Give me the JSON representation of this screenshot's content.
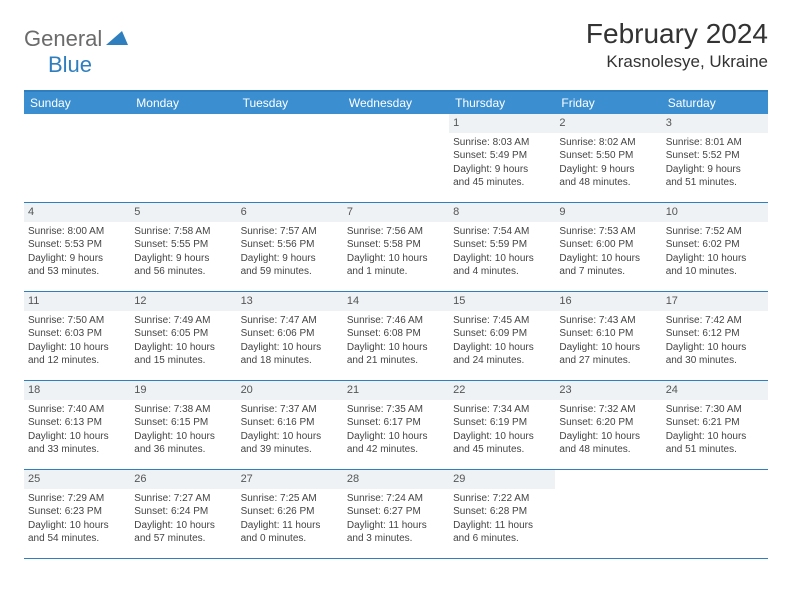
{
  "logo": {
    "part1": "General",
    "part2": "Blue"
  },
  "title": "February 2024",
  "subtitle": "Krasnolesye, Ukraine",
  "colors": {
    "header_bg": "#3b8fd1",
    "header_text": "#ffffff",
    "border": "#2f7fbf",
    "daynum_bg": "#eef2f5",
    "text": "#444444",
    "logo_gray": "#6b6b6b",
    "logo_blue": "#2f7fbf"
  },
  "day_headers": [
    "Sunday",
    "Monday",
    "Tuesday",
    "Wednesday",
    "Thursday",
    "Friday",
    "Saturday"
  ],
  "weeks": [
    [
      {
        "blank": true
      },
      {
        "blank": true
      },
      {
        "blank": true
      },
      {
        "blank": true
      },
      {
        "day": "1",
        "sunrise": "Sunrise: 8:03 AM",
        "sunset": "Sunset: 5:49 PM",
        "daylight1": "Daylight: 9 hours",
        "daylight2": "and 45 minutes."
      },
      {
        "day": "2",
        "sunrise": "Sunrise: 8:02 AM",
        "sunset": "Sunset: 5:50 PM",
        "daylight1": "Daylight: 9 hours",
        "daylight2": "and 48 minutes."
      },
      {
        "day": "3",
        "sunrise": "Sunrise: 8:01 AM",
        "sunset": "Sunset: 5:52 PM",
        "daylight1": "Daylight: 9 hours",
        "daylight2": "and 51 minutes."
      }
    ],
    [
      {
        "day": "4",
        "sunrise": "Sunrise: 8:00 AM",
        "sunset": "Sunset: 5:53 PM",
        "daylight1": "Daylight: 9 hours",
        "daylight2": "and 53 minutes."
      },
      {
        "day": "5",
        "sunrise": "Sunrise: 7:58 AM",
        "sunset": "Sunset: 5:55 PM",
        "daylight1": "Daylight: 9 hours",
        "daylight2": "and 56 minutes."
      },
      {
        "day": "6",
        "sunrise": "Sunrise: 7:57 AM",
        "sunset": "Sunset: 5:56 PM",
        "daylight1": "Daylight: 9 hours",
        "daylight2": "and 59 minutes."
      },
      {
        "day": "7",
        "sunrise": "Sunrise: 7:56 AM",
        "sunset": "Sunset: 5:58 PM",
        "daylight1": "Daylight: 10 hours",
        "daylight2": "and 1 minute."
      },
      {
        "day": "8",
        "sunrise": "Sunrise: 7:54 AM",
        "sunset": "Sunset: 5:59 PM",
        "daylight1": "Daylight: 10 hours",
        "daylight2": "and 4 minutes."
      },
      {
        "day": "9",
        "sunrise": "Sunrise: 7:53 AM",
        "sunset": "Sunset: 6:00 PM",
        "daylight1": "Daylight: 10 hours",
        "daylight2": "and 7 minutes."
      },
      {
        "day": "10",
        "sunrise": "Sunrise: 7:52 AM",
        "sunset": "Sunset: 6:02 PM",
        "daylight1": "Daylight: 10 hours",
        "daylight2": "and 10 minutes."
      }
    ],
    [
      {
        "day": "11",
        "sunrise": "Sunrise: 7:50 AM",
        "sunset": "Sunset: 6:03 PM",
        "daylight1": "Daylight: 10 hours",
        "daylight2": "and 12 minutes."
      },
      {
        "day": "12",
        "sunrise": "Sunrise: 7:49 AM",
        "sunset": "Sunset: 6:05 PM",
        "daylight1": "Daylight: 10 hours",
        "daylight2": "and 15 minutes."
      },
      {
        "day": "13",
        "sunrise": "Sunrise: 7:47 AM",
        "sunset": "Sunset: 6:06 PM",
        "daylight1": "Daylight: 10 hours",
        "daylight2": "and 18 minutes."
      },
      {
        "day": "14",
        "sunrise": "Sunrise: 7:46 AM",
        "sunset": "Sunset: 6:08 PM",
        "daylight1": "Daylight: 10 hours",
        "daylight2": "and 21 minutes."
      },
      {
        "day": "15",
        "sunrise": "Sunrise: 7:45 AM",
        "sunset": "Sunset: 6:09 PM",
        "daylight1": "Daylight: 10 hours",
        "daylight2": "and 24 minutes."
      },
      {
        "day": "16",
        "sunrise": "Sunrise: 7:43 AM",
        "sunset": "Sunset: 6:10 PM",
        "daylight1": "Daylight: 10 hours",
        "daylight2": "and 27 minutes."
      },
      {
        "day": "17",
        "sunrise": "Sunrise: 7:42 AM",
        "sunset": "Sunset: 6:12 PM",
        "daylight1": "Daylight: 10 hours",
        "daylight2": "and 30 minutes."
      }
    ],
    [
      {
        "day": "18",
        "sunrise": "Sunrise: 7:40 AM",
        "sunset": "Sunset: 6:13 PM",
        "daylight1": "Daylight: 10 hours",
        "daylight2": "and 33 minutes."
      },
      {
        "day": "19",
        "sunrise": "Sunrise: 7:38 AM",
        "sunset": "Sunset: 6:15 PM",
        "daylight1": "Daylight: 10 hours",
        "daylight2": "and 36 minutes."
      },
      {
        "day": "20",
        "sunrise": "Sunrise: 7:37 AM",
        "sunset": "Sunset: 6:16 PM",
        "daylight1": "Daylight: 10 hours",
        "daylight2": "and 39 minutes."
      },
      {
        "day": "21",
        "sunrise": "Sunrise: 7:35 AM",
        "sunset": "Sunset: 6:17 PM",
        "daylight1": "Daylight: 10 hours",
        "daylight2": "and 42 minutes."
      },
      {
        "day": "22",
        "sunrise": "Sunrise: 7:34 AM",
        "sunset": "Sunset: 6:19 PM",
        "daylight1": "Daylight: 10 hours",
        "daylight2": "and 45 minutes."
      },
      {
        "day": "23",
        "sunrise": "Sunrise: 7:32 AM",
        "sunset": "Sunset: 6:20 PM",
        "daylight1": "Daylight: 10 hours",
        "daylight2": "and 48 minutes."
      },
      {
        "day": "24",
        "sunrise": "Sunrise: 7:30 AM",
        "sunset": "Sunset: 6:21 PM",
        "daylight1": "Daylight: 10 hours",
        "daylight2": "and 51 minutes."
      }
    ],
    [
      {
        "day": "25",
        "sunrise": "Sunrise: 7:29 AM",
        "sunset": "Sunset: 6:23 PM",
        "daylight1": "Daylight: 10 hours",
        "daylight2": "and 54 minutes."
      },
      {
        "day": "26",
        "sunrise": "Sunrise: 7:27 AM",
        "sunset": "Sunset: 6:24 PM",
        "daylight1": "Daylight: 10 hours",
        "daylight2": "and 57 minutes."
      },
      {
        "day": "27",
        "sunrise": "Sunrise: 7:25 AM",
        "sunset": "Sunset: 6:26 PM",
        "daylight1": "Daylight: 11 hours",
        "daylight2": "and 0 minutes."
      },
      {
        "day": "28",
        "sunrise": "Sunrise: 7:24 AM",
        "sunset": "Sunset: 6:27 PM",
        "daylight1": "Daylight: 11 hours",
        "daylight2": "and 3 minutes."
      },
      {
        "day": "29",
        "sunrise": "Sunrise: 7:22 AM",
        "sunset": "Sunset: 6:28 PM",
        "daylight1": "Daylight: 11 hours",
        "daylight2": "and 6 minutes."
      },
      {
        "blank": true
      },
      {
        "blank": true
      }
    ]
  ]
}
